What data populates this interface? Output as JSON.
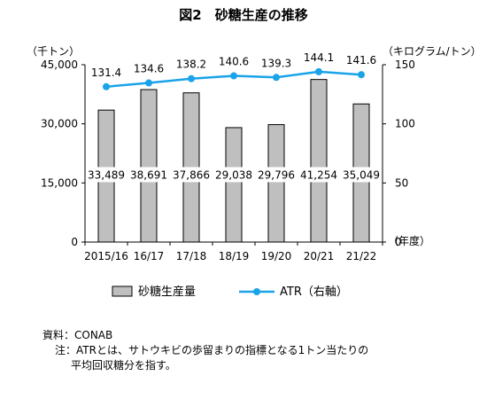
{
  "chart_data": {
    "type": "bar+line",
    "title": "図2　砂糖生産の推移",
    "categories": [
      "2015/16",
      "16/17",
      "17/18",
      "18/19",
      "19/20",
      "20/21",
      "21/22"
    ],
    "series": [
      {
        "name": "砂糖生産量",
        "type": "bar",
        "axis": "left",
        "values": [
          33489,
          38691,
          37866,
          29038,
          29796,
          41254,
          35049
        ],
        "value_labels": [
          "33,489",
          "38,691",
          "37,866",
          "29,038",
          "29,796",
          "41,254",
          "35,049"
        ]
      },
      {
        "name": "ATR（右軸）",
        "type": "line",
        "axis": "right",
        "values": [
          131.4,
          134.6,
          138.2,
          140.6,
          139.3,
          144.1,
          141.6
        ],
        "value_labels": [
          "131.4",
          "134.6",
          "138.2",
          "140.6",
          "139.3",
          "144.1",
          "141.6"
        ]
      }
    ],
    "y_left": {
      "label": "（千トン）",
      "range": [
        0,
        45000
      ],
      "ticks": [
        0,
        15000,
        30000,
        45000
      ],
      "tick_labels": [
        "0",
        "15,000",
        "30,000",
        "45,000"
      ]
    },
    "y_right": {
      "label": "（キログラム/トン）",
      "range": [
        0,
        150
      ],
      "ticks": [
        0,
        50,
        100,
        150
      ],
      "tick_labels": [
        "0",
        "50",
        "100",
        "150"
      ]
    },
    "x_unit_label": "（年度）",
    "grid": false,
    "legend_position": "bottom",
    "colors": {
      "bar_fill": "#bfbfbf",
      "bar_stroke": "#000000",
      "line": "#1aa3e8",
      "axis": "#000000"
    }
  },
  "notes": {
    "source": "資料：CONAB",
    "note_line1": "注：ATRとは、サトウキビの歩留まりの指標となる1トン当たりの",
    "note_line2": "平均回収糖分を指す。"
  }
}
